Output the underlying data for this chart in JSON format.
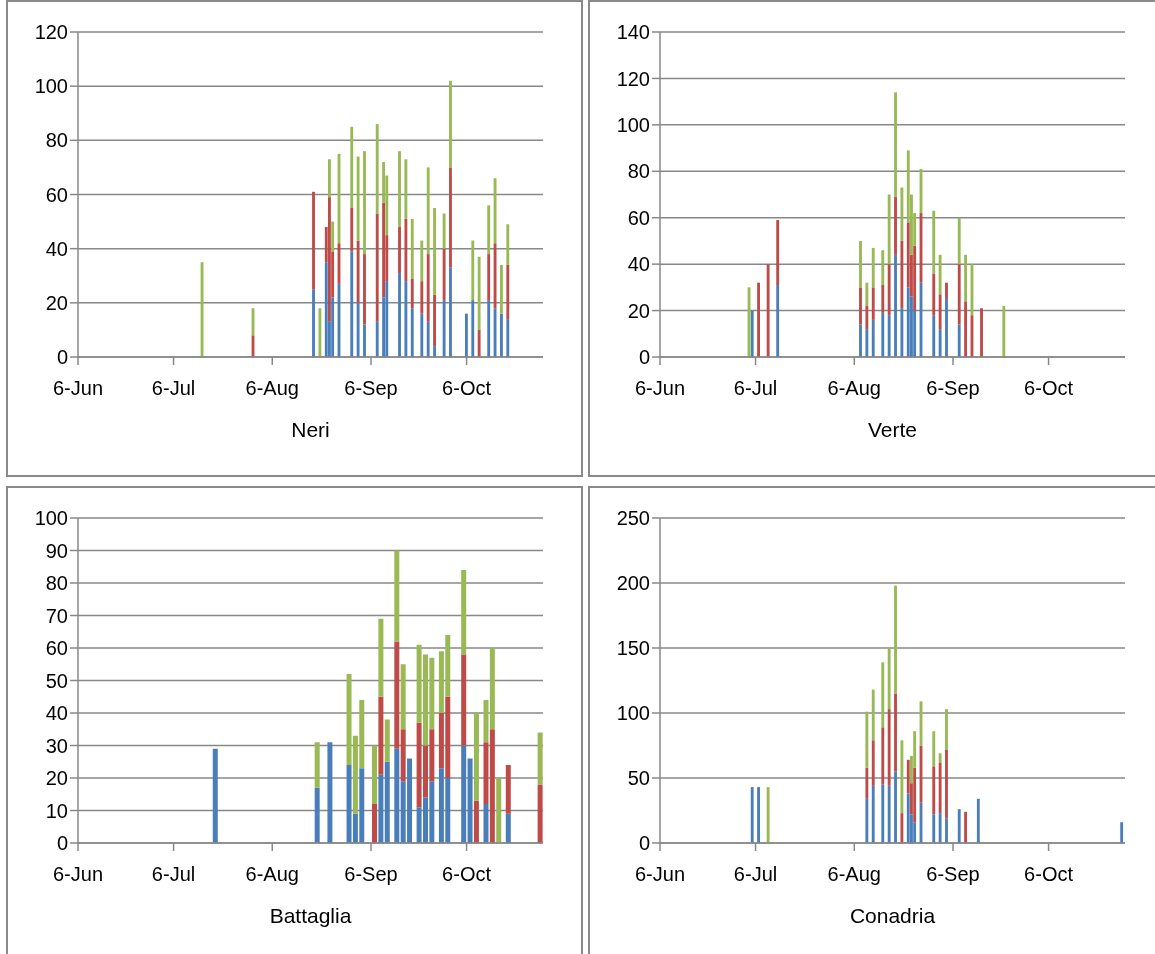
{
  "chart_data": [
    {
      "type": "bar",
      "stacked": true,
      "xlabel": "Neri",
      "grid": "y",
      "xlim": [
        "--06-06",
        "--10-30"
      ],
      "xticks": [
        {
          "value": "--06-06",
          "label": "6-Jun"
        },
        {
          "value": "--07-06",
          "label": "6-Jul"
        },
        {
          "value": "--08-06",
          "label": "6-Aug"
        },
        {
          "value": "--09-06",
          "label": "6-Sep"
        },
        {
          "value": "--10-06",
          "label": "6-Oct"
        }
      ],
      "ylim": [
        0,
        120
      ],
      "yticks": [
        0,
        20,
        40,
        60,
        80,
        100,
        120
      ],
      "x": [
        "--07-15",
        "--07-31",
        "--08-19",
        "--08-21",
        "--08-23",
        "--08-24",
        "--08-25",
        "--08-27",
        "--08-31",
        "--09-02",
        "--09-04",
        "--09-08",
        "--09-10",
        "--09-11",
        "--09-15",
        "--09-17",
        "--09-19",
        "--09-22",
        "--09-24",
        "--09-26",
        "--09-29",
        "--10-01",
        "--10-06",
        "--10-08",
        "--10-10",
        "--10-13",
        "--10-15",
        "--10-17",
        "--10-19"
      ],
      "series": [
        {
          "color": "#4a7ebb",
          "values": [
            null,
            null,
            25,
            null,
            35,
            13,
            22,
            27,
            39,
            20,
            12,
            13,
            22,
            28,
            31,
            28,
            18,
            16,
            13,
            4,
            21,
            33,
            16,
            21,
            null,
            21,
            18,
            16,
            14
          ]
        },
        {
          "color": "#be4b48",
          "values": [
            null,
            8,
            36,
            null,
            13,
            46,
            17,
            15,
            16,
            23,
            26,
            40,
            35,
            17,
            17,
            23,
            11,
            12,
            25,
            19,
            19,
            37,
            null,
            null,
            10,
            17,
            24,
            null,
            20
          ]
        },
        {
          "color": "#98b954",
          "values": [
            35,
            10,
            null,
            18,
            null,
            14,
            11,
            33,
            30,
            31,
            38,
            33,
            15,
            22,
            28,
            22,
            22,
            15,
            32,
            32,
            13,
            32,
            null,
            22,
            27,
            18,
            24,
            18,
            15
          ]
        }
      ]
    },
    {
      "type": "bar",
      "stacked": true,
      "xlabel": "Verte",
      "grid": "y",
      "xlim": [
        "--06-06",
        "--10-30"
      ],
      "xticks": [
        {
          "value": "--06-06",
          "label": "6-Jun"
        },
        {
          "value": "--07-06",
          "label": "6-Jul"
        },
        {
          "value": "--08-06",
          "label": "6-Aug"
        },
        {
          "value": "--09-06",
          "label": "6-Sep"
        },
        {
          "value": "--10-06",
          "label": "6-Oct"
        }
      ],
      "ylim": [
        0,
        140
      ],
      "yticks": [
        0,
        20,
        40,
        60,
        80,
        100,
        120,
        140
      ],
      "x": [
        "--07-04",
        "--07-05",
        "--07-07",
        "--07-10",
        "--07-13",
        "--08-08",
        "--08-10",
        "--08-12",
        "--08-15",
        "--08-17",
        "--08-19",
        "--08-21",
        "--08-23",
        "--08-24",
        "--08-25",
        "--08-27",
        "--08-31",
        "--09-02",
        "--09-04",
        "--09-08",
        "--09-10",
        "--09-12",
        "--09-15",
        "--09-22"
      ],
      "series": [
        {
          "color": "#4a7ebb",
          "values": [
            null,
            20,
            null,
            null,
            31,
            14,
            12,
            16,
            19,
            18,
            44,
            21,
            30,
            26,
            20,
            32,
            18,
            12,
            25,
            14,
            null,
            null,
            null,
            null
          ]
        },
        {
          "color": "#be4b48",
          "values": [
            null,
            null,
            32,
            40,
            28,
            16,
            10,
            14,
            12,
            22,
            25,
            29,
            28,
            18,
            28,
            30,
            18,
            15,
            7,
            26,
            24,
            18,
            21,
            null
          ]
        },
        {
          "color": "#98b954",
          "values": [
            30,
            null,
            null,
            null,
            null,
            20,
            10,
            17,
            15,
            30,
            45,
            23,
            31,
            26,
            14,
            19,
            27,
            17,
            null,
            20,
            20,
            22,
            null,
            22
          ]
        }
      ]
    },
    {
      "type": "bar",
      "stacked": true,
      "xlabel": "Battaglia",
      "grid": "y",
      "xlim": [
        "--06-06",
        "--10-30"
      ],
      "xticks": [
        {
          "value": "--06-06",
          "label": "6-Jun"
        },
        {
          "value": "--07-06",
          "label": "6-Jul"
        },
        {
          "value": "--08-06",
          "label": "6-Aug"
        },
        {
          "value": "--09-06",
          "label": "6-Sep"
        },
        {
          "value": "--10-06",
          "label": "6-Oct"
        }
      ],
      "ylim": [
        0,
        100
      ],
      "yticks": [
        0,
        10,
        20,
        30,
        40,
        50,
        60,
        70,
        80,
        90,
        100
      ],
      "x": [
        "--07-19",
        "--08-20",
        "--08-24",
        "--08-30",
        "--09-01",
        "--09-03",
        "--09-07",
        "--09-09",
        "--09-11",
        "--09-14",
        "--09-16",
        "--09-18",
        "--09-21",
        "--09-23",
        "--09-25",
        "--09-28",
        "--09-30",
        "--10-05",
        "--10-07",
        "--10-09",
        "--10-12",
        "--10-14",
        "--10-16",
        "--10-19",
        "--10-29"
      ],
      "series": [
        {
          "color": "#4a7ebb",
          "values": [
            29,
            17,
            31,
            24,
            9,
            23,
            null,
            21,
            25,
            29,
            19,
            26,
            11,
            14,
            19,
            23,
            20,
            30,
            26,
            null,
            12,
            null,
            null,
            9,
            null
          ]
        },
        {
          "color": "#be4b48",
          "values": [
            null,
            null,
            null,
            null,
            null,
            null,
            12,
            24,
            null,
            33,
            16,
            null,
            26,
            16,
            16,
            17,
            25,
            28,
            null,
            13,
            19,
            35,
            null,
            15,
            18
          ]
        },
        {
          "color": "#98b954",
          "values": [
            null,
            14,
            null,
            28,
            24,
            21,
            18,
            24,
            13,
            28,
            20,
            null,
            24,
            28,
            22,
            19,
            19,
            26,
            null,
            27,
            13,
            25,
            20,
            null,
            16
          ]
        }
      ]
    },
    {
      "type": "bar",
      "stacked": true,
      "xlabel": "Conadria",
      "grid": "y",
      "xlim": [
        "--06-06",
        "--10-30"
      ],
      "xticks": [
        {
          "value": "--06-06",
          "label": "6-Jun"
        },
        {
          "value": "--07-06",
          "label": "6-Jul"
        },
        {
          "value": "--08-06",
          "label": "6-Aug"
        },
        {
          "value": "--09-06",
          "label": "6-Sep"
        },
        {
          "value": "--10-06",
          "label": "6-Oct"
        }
      ],
      "ylim": [
        0,
        250
      ],
      "yticks": [
        0,
        50,
        100,
        150,
        200,
        250
      ],
      "x": [
        "--07-05",
        "--07-07",
        "--07-10",
        "--08-10",
        "--08-12",
        "--08-15",
        "--08-17",
        "--08-19",
        "--08-21",
        "--08-23",
        "--08-24",
        "--08-25",
        "--08-27",
        "--08-31",
        "--09-02",
        "--09-04",
        "--09-08",
        "--09-10",
        "--09-14",
        "--10-29"
      ],
      "series": [
        {
          "color": "#4a7ebb",
          "values": [
            43,
            43,
            null,
            34,
            44,
            45,
            44,
            55,
            null,
            38,
            22,
            16,
            31,
            22,
            23,
            19,
            26,
            null,
            34,
            16
          ]
        },
        {
          "color": "#be4b48",
          "values": [
            null,
            null,
            null,
            24,
            35,
            44,
            59,
            60,
            23,
            26,
            24,
            42,
            44,
            37,
            39,
            53,
            null,
            24,
            null,
            null
          ]
        },
        {
          "color": "#98b954",
          "values": [
            null,
            null,
            43,
            43,
            39,
            50,
            47,
            83,
            56,
            null,
            21,
            28,
            34,
            27,
            7,
            31,
            null,
            null,
            null,
            null
          ]
        }
      ]
    }
  ]
}
